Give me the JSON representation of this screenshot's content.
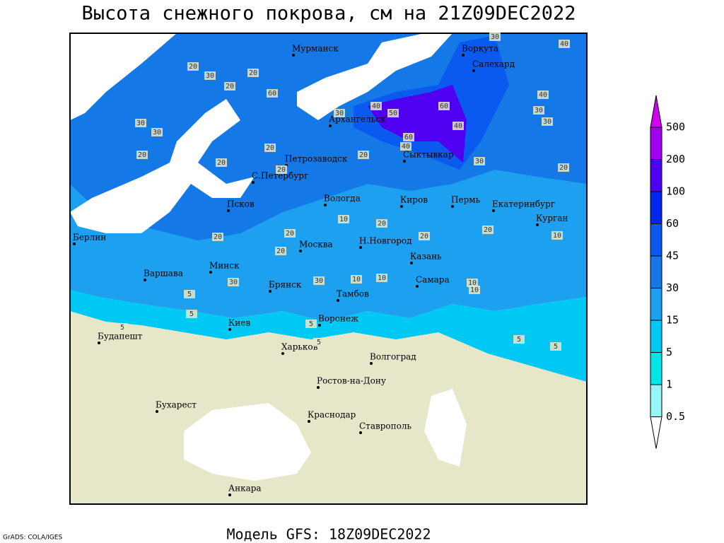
{
  "title": "Высота снежного покрова, см на 21Z09DEC2022",
  "footer": "Модель GFS: 18Z09DEC2022",
  "credit": "GrADS: COLA/IGES",
  "cities": [
    "Мурманск",
    "Воркута",
    "Салехард",
    "Архангельск",
    "Петрозаводск",
    "Сыктывкар",
    "С.Петербург",
    "Вологда",
    "Киров",
    "Пермь",
    "Екатеринбург",
    "Курган",
    "Псков",
    "Берлин",
    "Н.Новгород",
    "Казань",
    "Москва",
    "Минск",
    "Варшава",
    "Брянск",
    "Самара",
    "Тамбов",
    "Киев",
    "Воронеж",
    "Будапешт",
    "Харьков",
    "Волгоград",
    "Ростов-на-Дону",
    "Бухарест",
    "Краснодар",
    "Ставрополь",
    "Анкара"
  ],
  "contour_labels": [
    30,
    40,
    20,
    30,
    20,
    60,
    20,
    30,
    30,
    30,
    40,
    50,
    60,
    40,
    40,
    30,
    30,
    60,
    40,
    20,
    20,
    20,
    20,
    20,
    30,
    20,
    10,
    20,
    20,
    20,
    20,
    20,
    20,
    10,
    30,
    10,
    10,
    10,
    10,
    30,
    5,
    5,
    5,
    5,
    5,
    5,
    5
  ],
  "legend": {
    "levels": [
      0.5,
      1,
      5,
      15,
      30,
      45,
      60,
      100,
      200,
      500
    ],
    "colors": [
      "#ffffff",
      "#96f5f5",
      "#00e6e6",
      "#00c8f5",
      "#1ea0f0",
      "#1478e6",
      "#0a5af0",
      "#0028f0",
      "#5000f0",
      "#a000f0",
      "#d200f0"
    ]
  }
}
